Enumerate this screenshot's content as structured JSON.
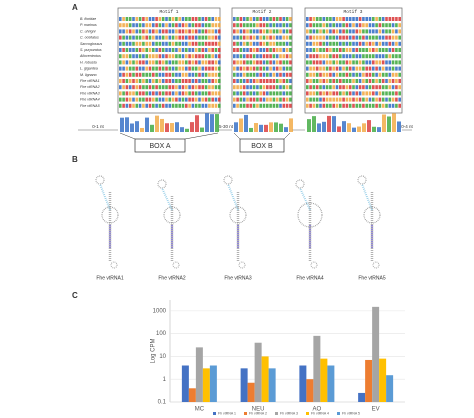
{
  "panel_a": {
    "label": "A",
    "motifs": [
      "Motif 1",
      "Motif 2",
      "Motif 3"
    ],
    "species": [
      "B. floridae",
      "P. marinus",
      "C. uhrigni",
      "C. ocellatus",
      "Saccoglossus",
      "S. purpuratus",
      "Allocentrotus",
      "H. robusta",
      "L. gigantea",
      "M. lignano",
      "Fhe vtRNA1",
      "Fhe vtRNA2",
      "Fhe vtRNA3",
      "Fhe vtRNA4",
      "Fhe vtRNA5"
    ],
    "gaps": [
      "0-1 nt",
      "5-30 nt",
      "0-4 nt"
    ],
    "boxes": [
      "BOX A",
      "BOX B"
    ]
  },
  "panel_b": {
    "label": "B",
    "structures": [
      "Fhe vtRNA1",
      "Fhe vtRNA2",
      "Fhe vtRNA3",
      "Fhe vtRNA4",
      "Fhe vtRNA5"
    ]
  },
  "panel_c": {
    "label": "C"
  },
  "chart_data": {
    "type": "bar",
    "y_label": "Log CPM",
    "log_y": true,
    "grid": true,
    "legend": "bottom",
    "categories": [
      "MC",
      "NEU",
      "AO",
      "EV"
    ],
    "ylim": [
      0.1,
      3000
    ],
    "yticks": [
      0.1,
      1,
      10,
      100,
      1000
    ],
    "series": [
      {
        "name": "Fh vtRNA 1",
        "color": "#4472c4",
        "values": [
          4,
          3,
          4,
          0.25
        ]
      },
      {
        "name": "Fh vtRNA 2",
        "color": "#ed7d31",
        "values": [
          0.4,
          0.7,
          1,
          7
        ]
      },
      {
        "name": "Fh vtRNA 3",
        "color": "#a5a5a5",
        "values": [
          25,
          40,
          80,
          1500
        ]
      },
      {
        "name": "Fh vtRNA 4",
        "color": "#ffc000",
        "values": [
          3,
          10,
          8,
          8
        ]
      },
      {
        "name": "Fh vtRNA 5",
        "color": "#5b9bd5",
        "values": [
          4,
          3,
          4,
          1.5
        ]
      }
    ]
  }
}
